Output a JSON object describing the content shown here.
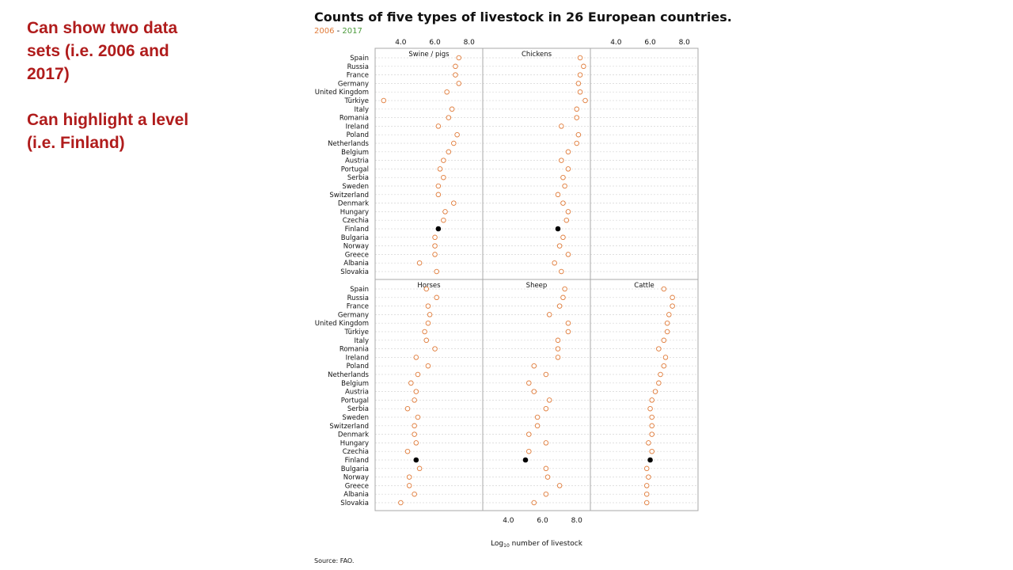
{
  "notes": {
    "line1": "Can show two data sets (i.e. 2006 and 2017)",
    "line2": "Can highlight a level (i.e. Finland)"
  },
  "colors": {
    "year_2006": "#e07b39",
    "year_2017": "#4a9a3a",
    "note": "#b01c1c",
    "highlight": "#000000"
  },
  "chart_data": {
    "type": "scatter",
    "title": "Counts of five types of livestock in 26 European countries.",
    "subtitle": {
      "y2006": "2006",
      "dash": " - ",
      "y2017": "2017"
    },
    "xlabel": "Log",
    "xlabel_sub": "10",
    "xlabel_rest": " number of livestock",
    "source": "Source: FAO.",
    "xlim": [
      2.5,
      8.8
    ],
    "xticks": [
      4.0,
      6.0,
      8.0
    ],
    "xtick_labels": [
      "4.0",
      "6.0",
      "8.0"
    ],
    "highlight": "Finland",
    "grid": "horizontal dashed",
    "countries": [
      "Spain",
      "Russia",
      "France",
      "Germany",
      "United Kingdom",
      "Türkiye",
      "Italy",
      "Romania",
      "Ireland",
      "Poland",
      "Netherlands",
      "Belgium",
      "Austria",
      "Portugal",
      "Serbia",
      "Sweden",
      "Switzerland",
      "Denmark",
      "Hungary",
      "Czechia",
      "Finland",
      "Bulgaria",
      "Norway",
      "Greece",
      "Albania",
      "Slovakia"
    ],
    "panels": [
      {
        "name": "Swine / pigs",
        "values": [
          7.4,
          7.2,
          7.2,
          7.4,
          6.7,
          3.0,
          7.0,
          6.8,
          6.2,
          7.3,
          7.1,
          6.8,
          6.5,
          6.3,
          6.5,
          6.2,
          6.2,
          7.1,
          6.6,
          6.5,
          6.2,
          6.0,
          6.0,
          6.0,
          5.1,
          6.1
        ]
      },
      {
        "name": "Chickens",
        "values": [
          8.2,
          8.4,
          8.2,
          8.1,
          8.2,
          8.5,
          8.0,
          8.0,
          7.1,
          8.1,
          8.0,
          7.5,
          7.1,
          7.5,
          7.2,
          7.3,
          6.9,
          7.2,
          7.5,
          7.4,
          6.9,
          7.2,
          7.0,
          7.5,
          6.7,
          7.1
        ]
      },
      {
        "name": "Horses",
        "values": [
          5.5,
          6.1,
          5.6,
          5.7,
          5.6,
          5.4,
          5.5,
          6.0,
          4.9,
          5.6,
          5.0,
          4.6,
          4.9,
          4.8,
          4.4,
          5.0,
          4.8,
          4.8,
          4.9,
          4.4,
          4.9,
          5.1,
          4.5,
          4.5,
          4.8,
          4.0
        ]
      },
      {
        "name": "Sheep",
        "values": [
          7.3,
          7.2,
          7.0,
          6.4,
          7.5,
          7.5,
          6.9,
          6.9,
          6.9,
          5.5,
          6.2,
          5.2,
          5.5,
          6.4,
          6.2,
          5.7,
          5.7,
          5.2,
          6.2,
          5.2,
          5.0,
          6.2,
          6.3,
          7.0,
          6.2,
          5.5
        ]
      },
      {
        "name": "Cattle",
        "values": [
          6.8,
          7.3,
          7.3,
          7.1,
          7.0,
          7.0,
          6.8,
          6.5,
          6.9,
          6.8,
          6.6,
          6.5,
          6.3,
          6.1,
          6.0,
          6.1,
          6.1,
          6.1,
          5.9,
          6.1,
          6.0,
          5.8,
          5.9,
          5.8,
          5.8,
          5.8
        ]
      }
    ]
  }
}
